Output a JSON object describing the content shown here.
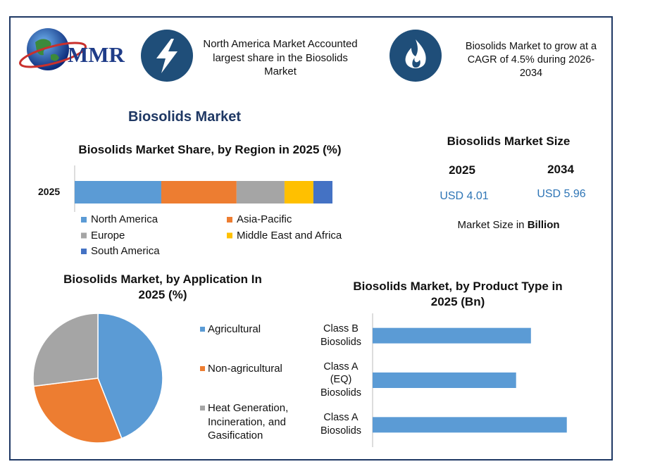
{
  "logo": {
    "text": "MMR"
  },
  "highlights": [
    "North America Market Accounted largest share in the Biosolids Market",
    "Biosolids Market to grow at a CAGR of 4.5% during 2026-2034"
  ],
  "title": "Biosolids Market",
  "market_size": {
    "title": "Biosolids Market Size",
    "items": [
      {
        "year": "2025",
        "value": "USD 4.01"
      },
      {
        "year": "2034",
        "value": "USD 5.96"
      }
    ],
    "note": "Market Size in",
    "note_unit": "Billion"
  },
  "chart_data": [
    {
      "type": "stacked_bar_h",
      "title": "Biosolids Market Share, by Region in 2025 (%)",
      "categories": [
        "2025"
      ],
      "series": [
        {
          "name": "North America",
          "color": "#5b9bd5",
          "values": [
            33.6
          ]
        },
        {
          "name": "Asia-Pacific",
          "color": "#ed7d31",
          "values": [
            29.2
          ]
        },
        {
          "name": "Europe",
          "color": "#a5a5a5",
          "values": [
            18.6
          ]
        },
        {
          "name": "Middle East and Africa",
          "color": "#ffc000",
          "values": [
            11.2
          ]
        },
        {
          "name": "South America",
          "color": "#4472c4",
          "values": [
            7.4
          ]
        }
      ],
      "xlim": [
        0,
        100
      ],
      "legend": "bottom"
    },
    {
      "type": "pie",
      "title": "Biosolids Market, by Application In 2025 (%)",
      "labels": [
        "Agricultural",
        "Non-agricultural",
        "Heat Generation, Incineration, and Gasification"
      ],
      "values": [
        44,
        29,
        27
      ],
      "colors": [
        "#5b9bd5",
        "#ed7d31",
        "#a5a5a5"
      ],
      "legend": "right"
    },
    {
      "type": "bar_h",
      "title": "Biosolids Market, by Product Type in 2025 (Bn)",
      "categories": [
        "Class B Biosolids",
        "Class A (EQ) Biosolids",
        "Class A Biosolids"
      ],
      "values": [
        1.28,
        1.16,
        1.57
      ],
      "color": "#5b9bd5",
      "xlim": [
        0,
        1.6
      ]
    }
  ]
}
